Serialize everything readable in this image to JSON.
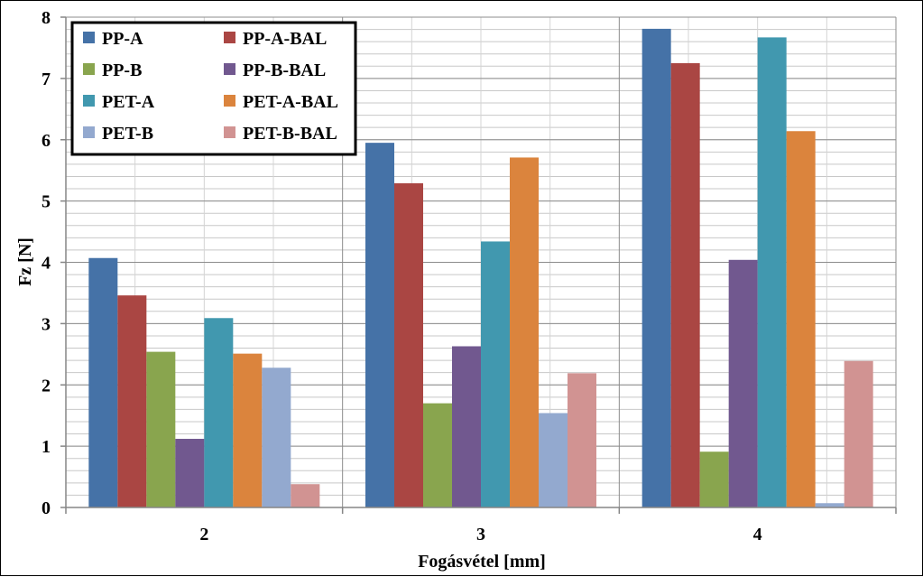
{
  "chart_data": {
    "type": "bar",
    "xlabel": "Fogásvétel [mm]",
    "ylabel": "Fz [N]",
    "categories": [
      "2",
      "3",
      "4"
    ],
    "ylim": [
      0,
      8
    ],
    "yticks": [
      "0",
      "1",
      "2",
      "3",
      "4",
      "5",
      "6",
      "7",
      "8"
    ],
    "grid": true,
    "legend_position": "top-left",
    "series": [
      {
        "name": "PP-A",
        "color": "#4572A7",
        "values": [
          4.07,
          5.95,
          7.81
        ]
      },
      {
        "name": "PP-A-BAL",
        "color": "#AA4643",
        "values": [
          3.46,
          5.29,
          7.25
        ]
      },
      {
        "name": "PP-B",
        "color": "#89A54E",
        "values": [
          2.54,
          1.7,
          0.91
        ]
      },
      {
        "name": "PP-B-BAL",
        "color": "#71588F",
        "values": [
          1.12,
          2.63,
          4.04
        ]
      },
      {
        "name": "PET-A",
        "color": "#4198AF",
        "values": [
          3.09,
          4.34,
          7.67
        ]
      },
      {
        "name": "PET-A-BAL",
        "color": "#DB843D",
        "values": [
          2.51,
          5.71,
          6.14
        ]
      },
      {
        "name": "PET-B",
        "color": "#93A9CF",
        "values": [
          2.28,
          1.54,
          0.07
        ]
      },
      {
        "name": "PET-B-BAL",
        "color": "#D19392",
        "values": [
          0.38,
          2.19,
          2.39
        ]
      }
    ]
  }
}
